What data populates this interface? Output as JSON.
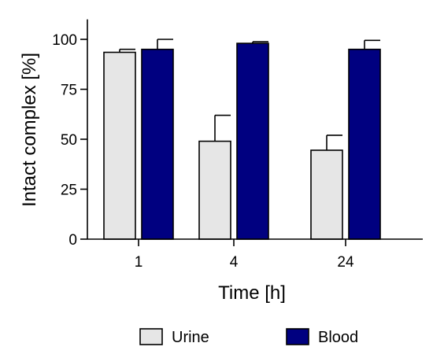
{
  "chart_data": {
    "type": "bar",
    "categories": [
      "1",
      "4",
      "24"
    ],
    "series": [
      {
        "name": "Urine",
        "values": [
          93.5,
          49,
          44.5
        ],
        "error": [
          1.5,
          13,
          7.5
        ],
        "color": "#e6e6e6"
      },
      {
        "name": "Blood",
        "values": [
          95,
          98,
          95
        ],
        "error": [
          5,
          0.8,
          4.5
        ],
        "color": "#000080"
      }
    ],
    "xlabel": "Time [h]",
    "ylabel": "Intact complex [%]",
    "ylim": [
      0,
      110
    ],
    "yticks": [
      0,
      25,
      50,
      75,
      100
    ],
    "grid": false,
    "legend_position": "bottom"
  }
}
